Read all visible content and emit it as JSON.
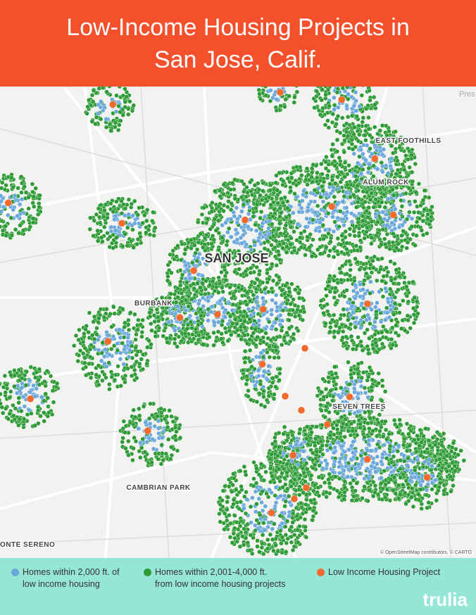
{
  "header": {
    "title_lines": [
      "Low-Income Housing Projects in",
      "San Jose, Calif."
    ]
  },
  "map": {
    "city": "SAN JOSE",
    "places": [
      "EAST FOOTHILLS",
      "ALUM ROCK",
      "BURBANK",
      "SEVEN TREES",
      "CAMBRIAN PARK",
      "ONTE SERENO",
      "Pres"
    ],
    "attribution": "© OpenStreetMap contributors, © CARTO"
  },
  "legend": [
    {
      "lines": [
        "Homes within 2,000 ft. of",
        "low income housing"
      ],
      "color": "#6aa8dc"
    },
    {
      "lines": [
        "Homes within 2,001-4,000 ft.",
        "from low income housing projects"
      ],
      "color": "#2e9b36"
    },
    {
      "lines": [
        "Low Income Housing Project"
      ],
      "color": "#f26a2e"
    }
  ],
  "brand": "trulia"
}
